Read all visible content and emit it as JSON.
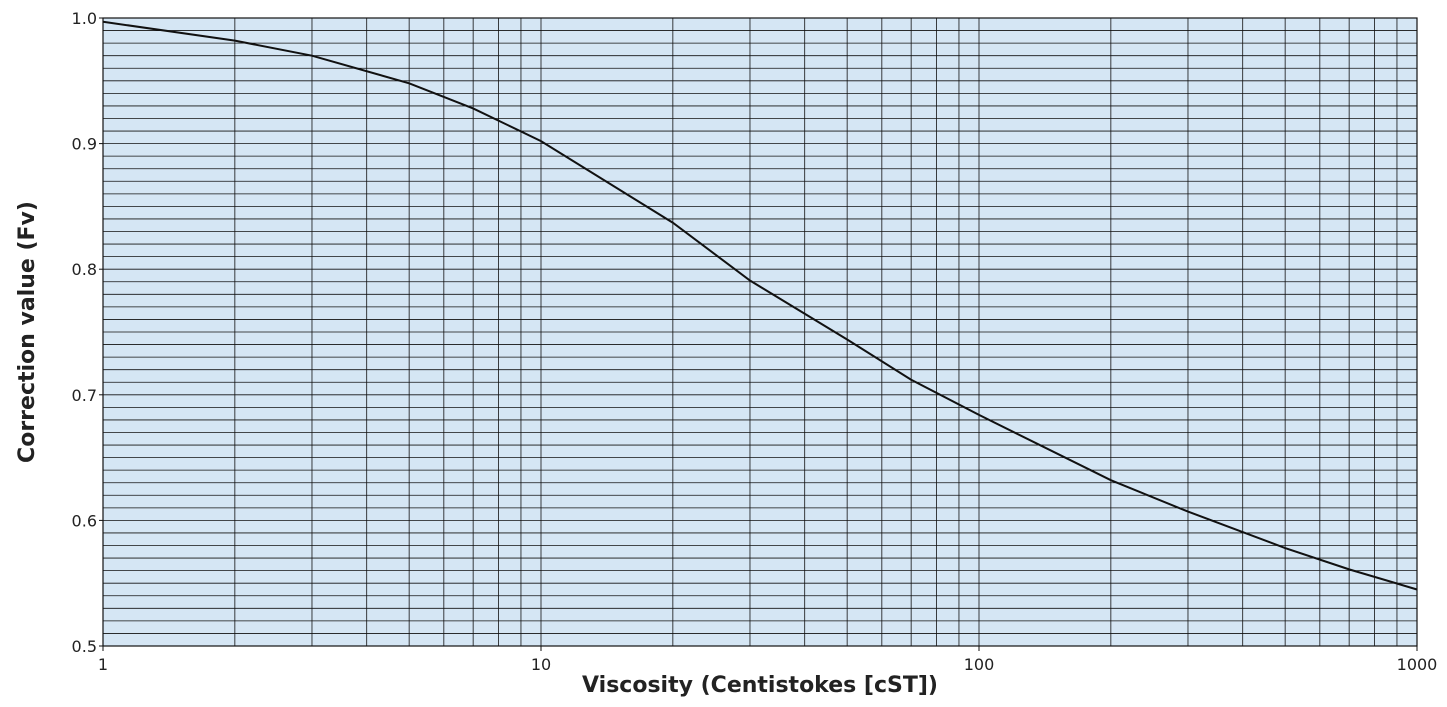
{
  "chart_data": {
    "type": "line",
    "x_label": "Viscosity (Centistokes [cST])",
    "y_label": "Correction value (Fv)",
    "xscale": "log",
    "xlim": [
      1,
      1000
    ],
    "ylim": [
      0.5,
      1
    ],
    "xticks": [
      1,
      10,
      100,
      1000
    ],
    "yticks": [
      0.5,
      0.6,
      0.7,
      0.8,
      0.9,
      {
        "value": 1,
        "label": "1.0"
      }
    ],
    "xgrid": [
      1,
      2,
      3,
      4,
      5,
      6,
      7,
      8,
      9,
      10,
      20,
      30,
      40,
      50,
      60,
      70,
      80,
      90,
      100,
      200,
      300,
      400,
      500,
      600,
      700,
      800,
      900,
      1000
    ],
    "ygrid": [
      0.5,
      0.51,
      0.52,
      0.53,
      0.54,
      0.55,
      0.56,
      0.57,
      0.58,
      0.59,
      0.6,
      0.61,
      0.62,
      0.63,
      0.64,
      0.65,
      0.66,
      0.67,
      0.68,
      0.69,
      0.7,
      0.71,
      0.72,
      0.73,
      0.74,
      0.75,
      0.76,
      0.77,
      0.78,
      0.79,
      0.8,
      0.81,
      0.82,
      0.83,
      0.84,
      0.85,
      0.86,
      0.87,
      0.88,
      0.89,
      0.9,
      0.91,
      0.92,
      0.93,
      0.94,
      0.95,
      0.96,
      0.97,
      0.98,
      0.99,
      1
    ],
    "grid": true,
    "background": "#d5e6f4",
    "x": [
      1,
      2,
      3,
      5,
      7,
      10,
      20,
      30,
      50,
      70,
      100,
      200,
      300,
      500,
      700,
      1000
    ],
    "series": [
      {
        "color": "#111111",
        "values": [
          0.997,
          0.982,
          0.97,
          0.948,
          0.928,
          0.902,
          0.837,
          0.791,
          0.744,
          0.712,
          0.684,
          0.632,
          0.607,
          0.578,
          0.561,
          0.545
        ]
      }
    ]
  }
}
